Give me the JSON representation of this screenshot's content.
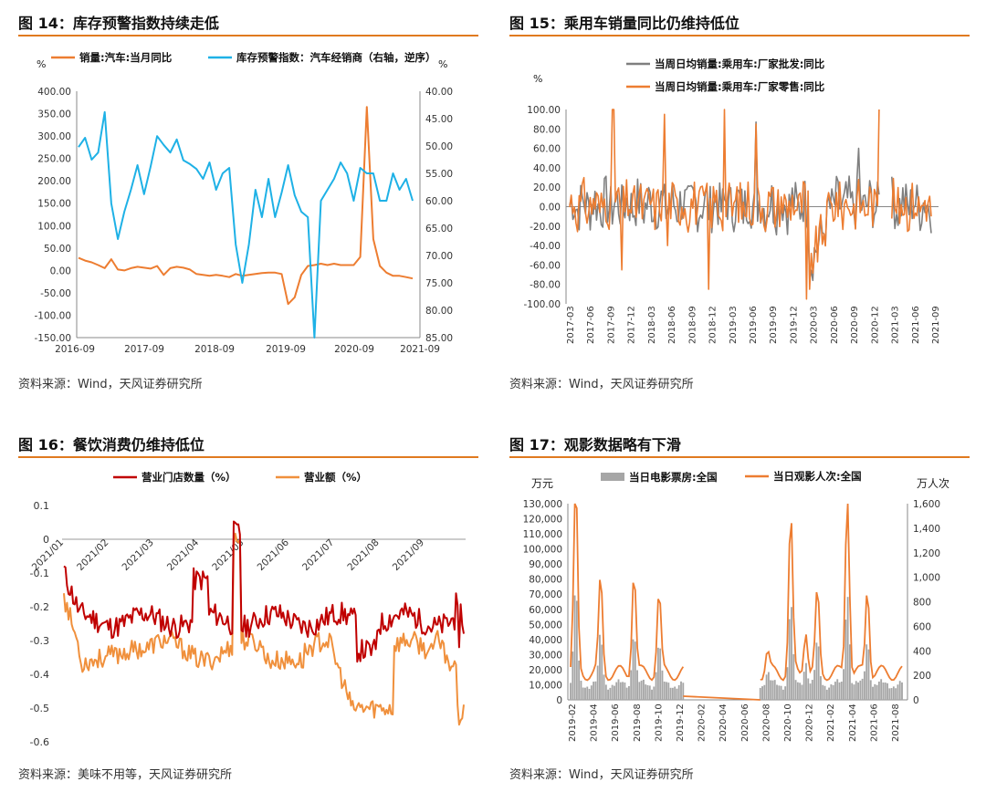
{
  "panels": [
    {
      "title": "图 14：库存预警指数持续走低",
      "source": "资料来源：Wind，天风证券研究所"
    },
    {
      "title": "图 15：乘用车销量同比仍维持低位",
      "source": "资料来源：Wind，天风证券研究所"
    },
    {
      "title": "图 16：餐饮消费仍维持低位",
      "source": "资料来源：美味不用等，天风证券研究所"
    },
    {
      "title": "图 17：观影数据略有下滑",
      "source": "资料来源：Wind，天风证券研究所"
    }
  ],
  "colors": {
    "orange": "#ED7D31",
    "blue": "#1EB1E6",
    "gray": "#7F7F7F",
    "darkred": "#C00000",
    "lightorange": "#F0903C",
    "bargray": "#A6A6A6",
    "rule": "#E07A1F"
  },
  "chart_data": [
    {
      "type": "line",
      "left_unit": "%",
      "right_unit": "%",
      "left_ticks": [
        "400.00",
        "350.00",
        "300.00",
        "250.00",
        "200.00",
        "150.00",
        "100.00",
        "50.00",
        "0.00",
        "-50.00",
        "-100.00",
        "-150.00"
      ],
      "right_ticks": [
        "40.00",
        "45.00",
        "50.00",
        "55.00",
        "60.00",
        "65.00",
        "70.00",
        "75.00",
        "80.00",
        "85.00"
      ],
      "x_ticks": [
        "2016-09",
        "2017-09",
        "2018-09",
        "2019-09",
        "2020-09",
        "2021-09"
      ],
      "ylim_left": [
        -150,
        400
      ],
      "ylim_right_inverted": [
        40,
        85
      ],
      "series": [
        {
          "name": "销量:汽车:当月同比",
          "axis": "left",
          "values": [
            28,
            22,
            18,
            12,
            5,
            25,
            2,
            0,
            5,
            8,
            6,
            4,
            10,
            -10,
            5,
            8,
            6,
            2,
            -8,
            -10,
            -12,
            -10,
            -12,
            -15,
            -8,
            -12,
            -10,
            -8,
            -6,
            -5,
            -5,
            -8,
            -75,
            -60,
            -10,
            10,
            12,
            15,
            12,
            15,
            12,
            12,
            12,
            30,
            365,
            70,
            10,
            -5,
            -12,
            -12,
            -15,
            -18
          ]
        },
        {
          "name": "库存预警指数：汽车经销商（右轴，逆序）",
          "axis": "right",
          "values": [
            50.2,
            48.5,
            52.5,
            51.2,
            43.8,
            60.5,
            67,
            62,
            58,
            53.5,
            58.8,
            53.8,
            48.2,
            49.8,
            51.2,
            48.8,
            52.6,
            53.3,
            54.2,
            56,
            53,
            58,
            55,
            54,
            68,
            75,
            68,
            58,
            63,
            56,
            63,
            58.5,
            53.5,
            59,
            62,
            63,
            85,
            60,
            58,
            56,
            53,
            55,
            60,
            54,
            55,
            55,
            60,
            60,
            55,
            58,
            56,
            60
          ]
        }
      ]
    },
    {
      "type": "line",
      "left_unit": "%",
      "y_ticks": [
        "100.00",
        "80.00",
        "60.00",
        "40.00",
        "20.00",
        "0.00",
        "-20.00",
        "-40.00",
        "-60.00",
        "-80.00",
        "-100.00"
      ],
      "x_ticks": [
        "2017-03",
        "2017-06",
        "2017-09",
        "2017-12",
        "2018-03",
        "2018-06",
        "2018-09",
        "2018-12",
        "2019-03",
        "2019-06",
        "2019-09",
        "2019-12",
        "2020-03",
        "2020-06",
        "2020-09",
        "2020-12",
        "2021-03",
        "2021-06",
        "2021-09"
      ],
      "ylim": [
        -100,
        100
      ],
      "series": [
        {
          "name": "当周日均销量:乘用车:厂家批发:同比"
        },
        {
          "name": "当周日均销量:乘用车:厂家零售:同比"
        }
      ]
    },
    {
      "type": "line",
      "y_ticks": [
        "0.1",
        "0",
        "-0.1",
        "-0.2",
        "-0.3",
        "-0.4",
        "-0.5",
        "-0.6"
      ],
      "x_ticks": [
        "2021/01",
        "2021/02",
        "2021/03",
        "2021/04",
        "2021/05",
        "2021/06",
        "2021/07",
        "2021/08",
        "2021/09"
      ],
      "ylim": [
        -0.6,
        0.1
      ],
      "series": [
        {
          "name": "营业门店数量（%）"
        },
        {
          "name": "营业额（%）"
        }
      ]
    },
    {
      "type": "line",
      "left_unit": "万元",
      "right_unit": "万人次",
      "left_ticks": [
        "130,000",
        "120,000",
        "110,000",
        "100,000",
        "90,000",
        "80,000",
        "70,000",
        "60,000",
        "50,000",
        "40,000",
        "30,000",
        "20,000",
        "10,000",
        "0"
      ],
      "right_ticks": [
        "1,600",
        "1,400",
        "1,200",
        "1,000",
        "800",
        "600",
        "400",
        "200",
        "0"
      ],
      "x_ticks": [
        "2019-02",
        "2019-04",
        "2019-06",
        "2019-08",
        "2019-10",
        "2019-12",
        "2020-02",
        "2020-04",
        "2020-06",
        "2020-08",
        "2020-10",
        "2020-12",
        "2021-02",
        "2021-04",
        "2021-06",
        "2021-08"
      ],
      "ylim_left": [
        0,
        130000
      ],
      "ylim_right": [
        0,
        1600
      ],
      "series": [
        {
          "name": "当日电影票房:全国",
          "kind": "bar"
        },
        {
          "name": "当日观影人次:全国",
          "kind": "line"
        }
      ]
    }
  ]
}
